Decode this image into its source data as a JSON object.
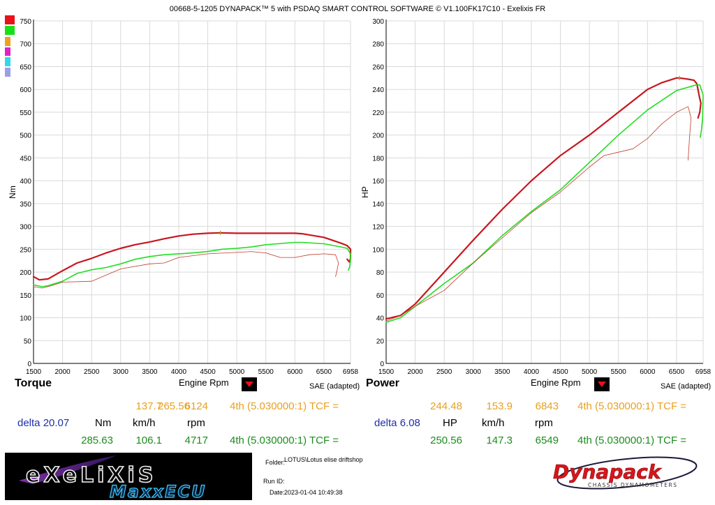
{
  "header": {
    "title": "00668-5-1205 DYNAPACK™ 5 with PSDAQ SMART CONTROL SOFTWARE © V1.100FK17C10 - Exelixis FR"
  },
  "colors": {
    "run1": "#c8161e",
    "run2": "#22dd22",
    "run3": "#c0392b",
    "grid": "#d9d9d9"
  },
  "swatches": [
    "#e8121b",
    "#18e018",
    "#f0a020",
    "#e020c8",
    "#30d8e8",
    "#9aa0e8"
  ],
  "chart_data": [
    {
      "type": "line",
      "title": "Torque",
      "xlabel": "Engine Rpm",
      "ylabel": "Nm",
      "correction": "SAE (adapted)",
      "xlim": [
        1500,
        6958
      ],
      "ylim": [
        0,
        750
      ],
      "xticks": [
        "1500",
        "2000",
        "2500",
        "3000",
        "3500",
        "4000",
        "4500",
        "5000",
        "5500",
        "6000",
        "6500",
        "6958"
      ],
      "yticks": [
        "0",
        "50",
        "100",
        "150",
        "200",
        "250",
        "300",
        "350",
        "400",
        "450",
        "500",
        "550",
        "600",
        "650",
        "700",
        "750"
      ],
      "grid": true,
      "series": [
        {
          "color": "#c8161e",
          "x": [
            1500,
            1600,
            1750,
            2000,
            2250,
            2500,
            2750,
            3000,
            3250,
            3500,
            3750,
            4000,
            4250,
            4500,
            4717,
            5000,
            5500,
            6000,
            6124,
            6500,
            6800,
            6900,
            6958,
            6958,
            6940,
            6900
          ],
          "y": [
            190,
            183,
            185,
            203,
            220,
            230,
            242,
            252,
            260,
            266,
            273,
            279,
            283,
            285,
            286,
            285,
            285,
            285,
            284,
            276,
            263,
            258,
            250,
            230,
            222,
            228
          ]
        },
        {
          "color": "#22dd22",
          "x": [
            1500,
            1650,
            1750,
            2000,
            2250,
            2500,
            2750,
            3000,
            3250,
            3500,
            3750,
            4000,
            4250,
            4500,
            4750,
            5000,
            5250,
            5500,
            6000,
            6124,
            6500,
            6800,
            6900,
            6958,
            6958,
            6940,
            6920
          ],
          "y": [
            172,
            168,
            170,
            180,
            197,
            205,
            210,
            218,
            228,
            234,
            238,
            240,
            242,
            245,
            250,
            252,
            255,
            260,
            265,
            265,
            262,
            255,
            252,
            240,
            225,
            210,
            204
          ]
        },
        {
          "color": "#c0392b",
          "x": [
            1500,
            1650,
            1800,
            2000,
            2500,
            3000,
            3500,
            3750,
            4000,
            4500,
            5000,
            5250,
            5500,
            5750,
            6000,
            6250,
            6500,
            6700,
            6750,
            6720,
            6700
          ],
          "y": [
            168,
            165,
            170,
            178,
            180,
            207,
            218,
            220,
            232,
            240,
            243,
            245,
            242,
            232,
            232,
            238,
            240,
            238,
            220,
            200,
            190
          ]
        }
      ],
      "readout": {
        "row1": {
          "value": "265.56",
          "speed": "137.7",
          "rpm": "6124",
          "gear": "4th (5.030000:1) TCF ="
        },
        "delta": "delta 20.07",
        "units": {
          "value": "Nm",
          "speed": "km/h",
          "rpm": "rpm"
        },
        "row2": {
          "value": "285.63",
          "speed": "106.1",
          "rpm": "4717",
          "gear": "4th (5.030000:1) TCF ="
        }
      }
    },
    {
      "type": "line",
      "title": "Power",
      "xlabel": "Engine Rpm",
      "ylabel": "HP",
      "correction": "SAE (adapted)",
      "xlim": [
        1500,
        6958
      ],
      "ylim": [
        0,
        300
      ],
      "xticks": [
        "1500",
        "2000",
        "2500",
        "3000",
        "3500",
        "4000",
        "4500",
        "5000",
        "5500",
        "6000",
        "6500",
        "6958"
      ],
      "yticks": [
        "0",
        "20",
        "40",
        "60",
        "80",
        "100",
        "120",
        "140",
        "160",
        "180",
        "200",
        "220",
        "240",
        "260",
        "280",
        "300"
      ],
      "grid": true,
      "series": [
        {
          "color": "#c8161e",
          "x": [
            1500,
            1750,
            2000,
            2500,
            3000,
            3500,
            4000,
            4500,
            5000,
            5500,
            6000,
            6250,
            6500,
            6549,
            6700,
            6800,
            6850,
            6900,
            6920,
            6900,
            6870
          ],
          "y": [
            39,
            42,
            52,
            80,
            108,
            135,
            160,
            182,
            200,
            220,
            240,
            246,
            250,
            250,
            249,
            248,
            245,
            232,
            228,
            220,
            215
          ]
        },
        {
          "color": "#22dd22",
          "x": [
            1500,
            1750,
            2000,
            2500,
            3000,
            3500,
            4000,
            4500,
            5000,
            5500,
            6000,
            6500,
            6843,
            6900,
            6958,
            6950,
            6930,
            6910
          ],
          "y": [
            36,
            40,
            50,
            70,
            88,
            112,
            133,
            152,
            176,
            200,
            222,
            239,
            244,
            244,
            235,
            215,
            205,
            198
          ]
        },
        {
          "color": "#c0392b",
          "x": [
            1500,
            1750,
            2000,
            2500,
            3000,
            3500,
            4000,
            4500,
            5000,
            5250,
            5500,
            5750,
            6000,
            6250,
            6500,
            6700,
            6750,
            6720,
            6700
          ],
          "y": [
            37,
            42,
            50,
            64,
            88,
            110,
            132,
            150,
            172,
            182,
            185,
            188,
            197,
            210,
            220,
            225,
            215,
            195,
            178
          ]
        }
      ],
      "readout": {
        "row1": {
          "value": "244.48",
          "speed": "153.9",
          "rpm": "6843",
          "gear": "4th (5.030000:1) TCF ="
        },
        "delta": "delta 6.08",
        "units": {
          "value": "HP",
          "speed": "km/h",
          "rpm": "rpm"
        },
        "row2": {
          "value": "250.56",
          "speed": "147.3",
          "rpm": "6549",
          "gear": "4th (5.030000:1) TCF ="
        }
      }
    }
  ],
  "logos": {
    "left_line1": "eXeLiXiS",
    "left_line2": "MaxxECU",
    "right_brand": "Dynapack",
    "right_sub": "CHASSIS DYNAMOMETERS"
  },
  "info": {
    "folder_label": "Folder:",
    "folder_value": "LOTUS\\Lotus elise driftshop",
    "run_label": "Run ID:",
    "run_value": "",
    "date_label": "Date:",
    "date_value": "2023-01-04 10:49:38"
  }
}
